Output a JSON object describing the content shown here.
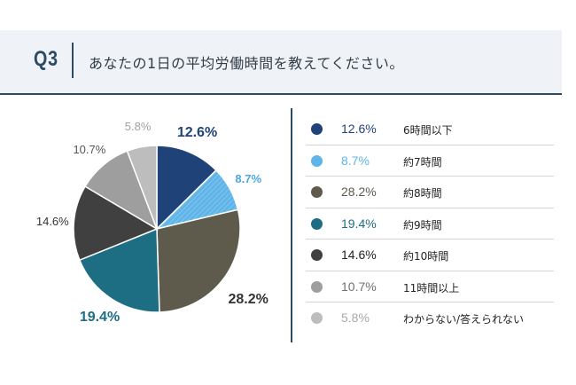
{
  "header": {
    "question_number": "Q3",
    "question_text": "あなたの1日の平均労働時間を教えてください。"
  },
  "chart_data": {
    "type": "pie",
    "categories": [
      "6時間以下",
      "約7時間",
      "約8時間",
      "約9時間",
      "約10時間",
      "11時間以上",
      "わからない/答えられない"
    ],
    "values": [
      12.6,
      8.7,
      28.2,
      19.4,
      14.6,
      10.7,
      5.8
    ],
    "value_labels": [
      "12.6%",
      "8.7%",
      "28.2%",
      "19.4%",
      "14.6%",
      "10.7%",
      "5.8%"
    ],
    "colors": [
      "#1f4279",
      "#5fb5e8",
      "#5e5a4c",
      "#1d6e82",
      "#404040",
      "#9e9e9e",
      "#bdbdbd"
    ],
    "label_colors": [
      "#1f4279",
      "#4aa8e0",
      "#333333",
      "#1d6e82",
      "#333333",
      "#555555",
      "#a0a0a0"
    ],
    "legend_pct_colors": [
      "#1f4279",
      "#5fb5e8",
      "#5e5a4c",
      "#1d6e82",
      "#222222",
      "#707070",
      "#a8a8a8"
    ],
    "legend_position": "right"
  }
}
